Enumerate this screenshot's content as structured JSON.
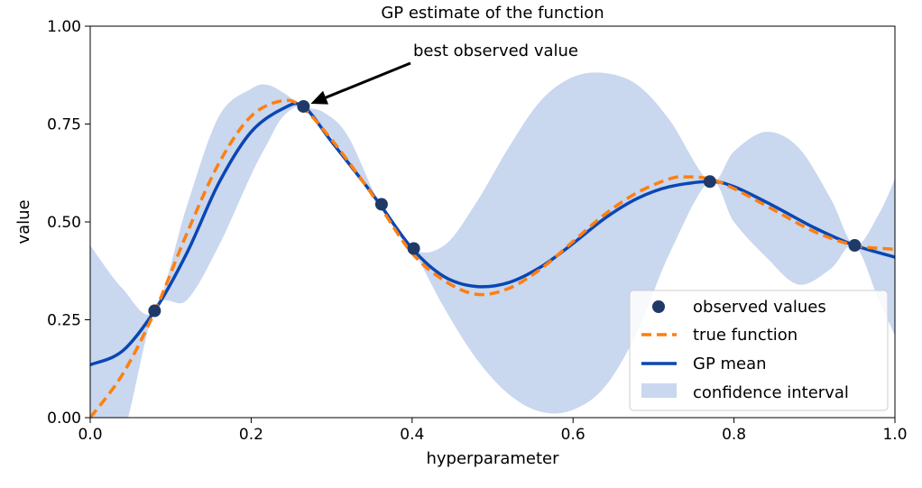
{
  "chart_data": {
    "type": "line",
    "title": "GP estimate of the function",
    "xlabel": "hyperparameter",
    "ylabel": "value",
    "xlim": [
      0.0,
      1.0
    ],
    "ylim": [
      0.0,
      1.0
    ],
    "xticks": [
      0.0,
      0.2,
      0.4,
      0.6,
      0.8,
      1.0
    ],
    "xtick_labels": [
      "0.0",
      "0.2",
      "0.4",
      "0.6",
      "0.8",
      "1.0"
    ],
    "yticks": [
      0.0,
      0.25,
      0.5,
      0.75,
      1.0
    ],
    "ytick_labels": [
      "0.00",
      "0.25",
      "0.50",
      "0.75",
      "1.00"
    ],
    "grid": false,
    "legend_position": "lower-right",
    "observed": {
      "name": "observed values",
      "color": "#1f3a68",
      "x": [
        0.08,
        0.265,
        0.362,
        0.402,
        0.77,
        0.95
      ],
      "y": [
        0.273,
        0.795,
        0.545,
        0.432,
        0.603,
        0.44
      ]
    },
    "true_function": {
      "name": "true function",
      "color": "#ff7f0e",
      "x": [
        0.0,
        0.04,
        0.08,
        0.12,
        0.16,
        0.2,
        0.24,
        0.265,
        0.3,
        0.34,
        0.36,
        0.4,
        0.44,
        0.48,
        0.52,
        0.56,
        0.6,
        0.64,
        0.68,
        0.72,
        0.74,
        0.77,
        0.8,
        0.85,
        0.9,
        0.95,
        1.0
      ],
      "y": [
        0.0,
        0.11,
        0.27,
        0.47,
        0.65,
        0.77,
        0.81,
        0.79,
        0.71,
        0.6,
        0.54,
        0.42,
        0.35,
        0.315,
        0.33,
        0.38,
        0.45,
        0.52,
        0.575,
        0.61,
        0.615,
        0.61,
        0.585,
        0.53,
        0.475,
        0.44,
        0.43
      ]
    },
    "gp_mean": {
      "name": "GP mean",
      "color": "#0a46b4",
      "x": [
        0.0,
        0.04,
        0.08,
        0.12,
        0.16,
        0.2,
        0.24,
        0.265,
        0.3,
        0.34,
        0.36,
        0.4,
        0.44,
        0.48,
        0.52,
        0.56,
        0.6,
        0.64,
        0.68,
        0.72,
        0.77,
        0.8,
        0.85,
        0.9,
        0.95,
        1.0
      ],
      "y": [
        0.135,
        0.17,
        0.273,
        0.42,
        0.6,
        0.73,
        0.79,
        0.795,
        0.705,
        0.6,
        0.545,
        0.432,
        0.36,
        0.335,
        0.345,
        0.385,
        0.445,
        0.51,
        0.56,
        0.59,
        0.603,
        0.59,
        0.54,
        0.485,
        0.44,
        0.41
      ]
    },
    "confidence_interval": {
      "name": "confidence interval",
      "color": "#c9d7ef",
      "x": [
        0.0,
        0.04,
        0.08,
        0.12,
        0.16,
        0.2,
        0.22,
        0.24,
        0.265,
        0.29,
        0.32,
        0.36,
        0.4,
        0.44,
        0.48,
        0.52,
        0.56,
        0.6,
        0.64,
        0.68,
        0.72,
        0.77,
        0.8,
        0.84,
        0.88,
        0.92,
        0.95,
        0.98,
        1.0
      ],
      "lower": [
        -0.17,
        -0.05,
        0.273,
        0.3,
        0.44,
        0.62,
        0.7,
        0.77,
        0.795,
        0.74,
        0.66,
        0.545,
        0.432,
        0.28,
        0.15,
        0.06,
        0.015,
        0.02,
        0.08,
        0.22,
        0.42,
        0.603,
        0.5,
        0.41,
        0.34,
        0.38,
        0.44,
        0.3,
        0.21
      ],
      "upper": [
        0.44,
        0.33,
        0.273,
        0.54,
        0.77,
        0.84,
        0.85,
        0.83,
        0.795,
        0.78,
        0.72,
        0.545,
        0.432,
        0.44,
        0.55,
        0.69,
        0.81,
        0.87,
        0.88,
        0.85,
        0.76,
        0.603,
        0.68,
        0.73,
        0.69,
        0.56,
        0.44,
        0.52,
        0.61
      ]
    },
    "annotation": {
      "text": "best observed value",
      "target_x": 0.265,
      "target_y": 0.795
    }
  }
}
